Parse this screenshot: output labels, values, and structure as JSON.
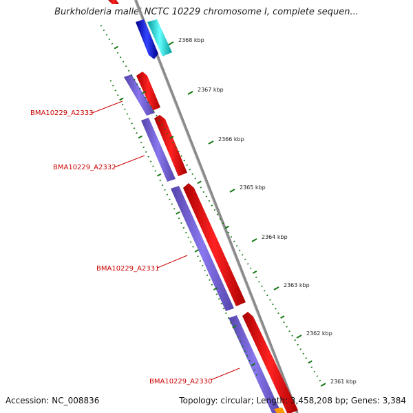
{
  "title": "Burkholderia mallei NCTC 10229 chromosome I, complete sequen...",
  "accession": "Accession: NC_008836",
  "summary": "Topology: circular; Length: 3,458,208 bp; Genes: 3,384",
  "ticks": [
    {
      "label": "2368 kbp",
      "kbp": 2368
    },
    {
      "label": "2367 kbp",
      "kbp": 2367
    },
    {
      "label": "2366 kbp",
      "kbp": 2366
    },
    {
      "label": "2365 kbp",
      "kbp": 2365
    },
    {
      "label": "2364 kbp",
      "kbp": 2364
    },
    {
      "label": "2363 kbp",
      "kbp": 2363
    },
    {
      "label": "2362 kbp",
      "kbp": 2362
    },
    {
      "label": "2361 kbp",
      "kbp": 2361
    }
  ],
  "genes": [
    {
      "label": "BMA10229_A2333"
    },
    {
      "label": "BMA10229_A2332"
    },
    {
      "label": "BMA10229_A2331"
    },
    {
      "label": "BMA10229_A2330"
    }
  ],
  "colors": {
    "backbone": "#888888",
    "cds": "#ff0000",
    "cds_dark": "#cc0000",
    "gene_bar": "#7766dd",
    "forward_feature": "#1a1aee",
    "reverse_feature": "#22eeee",
    "tick": "#117711",
    "orange": "#ff9900"
  }
}
